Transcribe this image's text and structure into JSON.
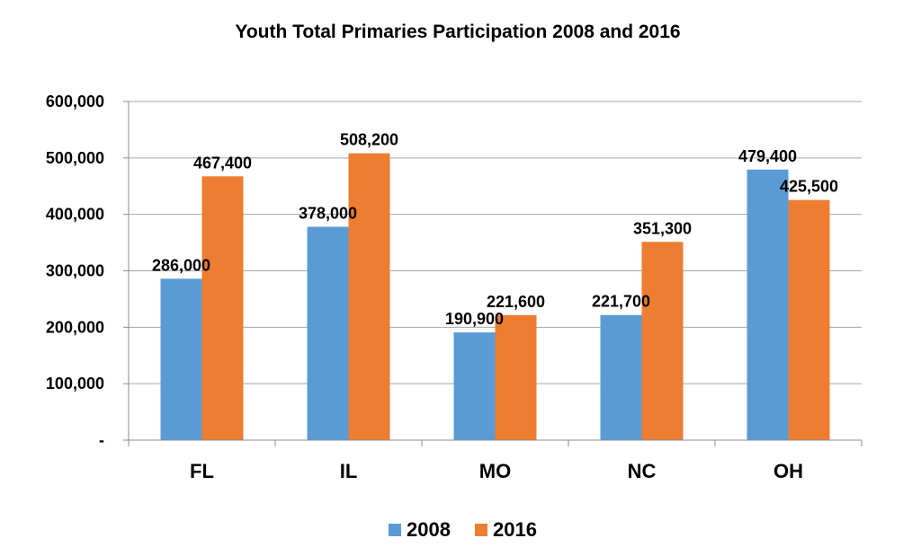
{
  "chart_data": {
    "type": "bar",
    "title": "Youth Total Primaries Participation 2008 and 2016",
    "xlabel": "",
    "ylabel": "",
    "categories": [
      "FL",
      "IL",
      "MO",
      "NC",
      "OH"
    ],
    "series": [
      {
        "name": "2008",
        "color": "#5b9bd5",
        "values": [
          286000,
          378000,
          190900,
          221700,
          479400
        ],
        "labels": [
          "286,000",
          "378,000",
          "190,900",
          "221,700",
          "479,400"
        ]
      },
      {
        "name": "2016",
        "color": "#ed7d31",
        "values": [
          467400,
          508200,
          221600,
          351300,
          425500
        ],
        "labels": [
          "467,400",
          "508,200",
          "221,600",
          "351,300",
          "425,500"
        ]
      }
    ],
    "ylim": [
      0,
      600000
    ],
    "yticks": [
      0,
      100000,
      200000,
      300000,
      400000,
      500000,
      600000
    ],
    "ytick_labels": [
      "-",
      "100,000",
      "200,000",
      "300,000",
      "400,000",
      "500,000",
      "600,000"
    ],
    "grid": true,
    "legend_position": "bottom"
  }
}
